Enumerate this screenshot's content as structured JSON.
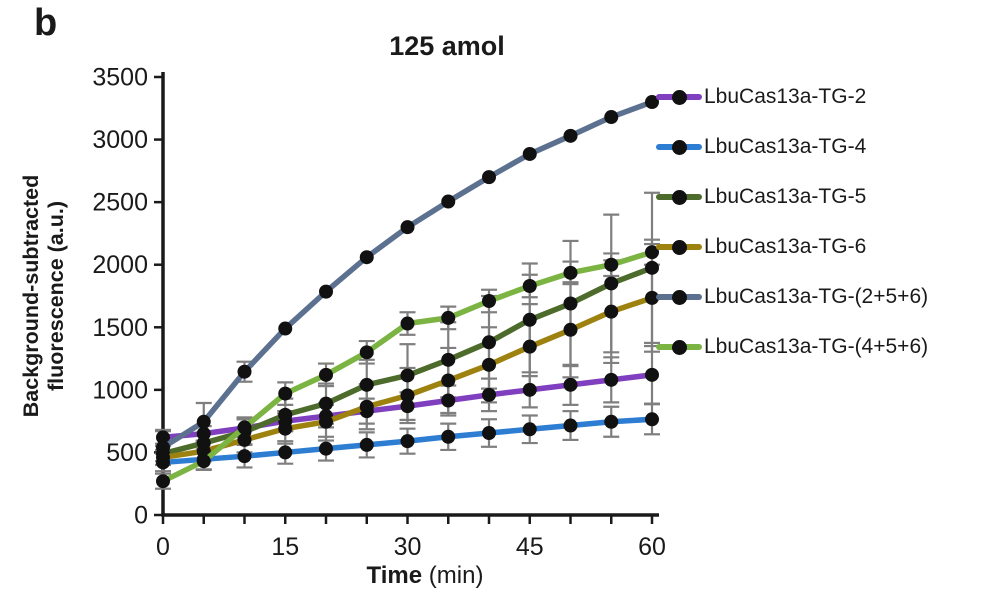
{
  "panel_label": "b",
  "chart_data": {
    "type": "line",
    "title": "125 amol",
    "xlabel_word": "Time",
    "xlabel_unit": " (min)",
    "ylabel_line1": "Background-subtracted",
    "ylabel_line2": "fluorescence (a.u.)",
    "x": [
      0,
      5,
      10,
      15,
      20,
      25,
      30,
      35,
      40,
      45,
      50,
      55,
      60
    ],
    "x_labeled_ticks": [
      0,
      15,
      30,
      45,
      60
    ],
    "x_minor_step": 5,
    "xlim": [
      0,
      60
    ],
    "ylim": [
      0,
      3500
    ],
    "y_tick_step": 500,
    "grid": false,
    "legend_position": "right",
    "marker_style": "black-circle",
    "marker_color": "#111111",
    "error_bar_color": "#7f7f7f",
    "axis_color": "#1a1a1a",
    "series": [
      {
        "name": "LbuCas13a-TG-2",
        "color": "#7f3fbf",
        "values": [
          620,
          650,
          695,
          750,
          790,
          830,
          870,
          915,
          960,
          1000,
          1040,
          1080,
          1120
        ],
        "errors": [
          50,
          60,
          70,
          80,
          90,
          100,
          110,
          120,
          130,
          140,
          160,
          180,
          230
        ]
      },
      {
        "name": "LbuCas13a-TG-4",
        "color": "#2d7dd2",
        "values": [
          420,
          445,
          470,
          500,
          530,
          560,
          590,
          625,
          655,
          685,
          715,
          745,
          765
        ],
        "errors": [
          70,
          80,
          90,
          90,
          95,
          100,
          100,
          105,
          110,
          110,
          115,
          120,
          120
        ]
      },
      {
        "name": "LbuCas13a-TG-5",
        "color": "#4d6b2b",
        "values": [
          490,
          575,
          665,
          800,
          890,
          1040,
          1115,
          1240,
          1380,
          1560,
          1690,
          1850,
          1975
        ],
        "errors": [
          60,
          80,
          100,
          130,
          160,
          200,
          250,
          300,
          370,
          450,
          500,
          550,
          600
        ]
      },
      {
        "name": "LbuCas13a-TG-6",
        "color": "#9e8210",
        "values": [
          460,
          510,
          600,
          690,
          745,
          865,
          955,
          1075,
          1200,
          1345,
          1480,
          1625,
          1735
        ],
        "errors": [
          60,
          80,
          100,
          120,
          150,
          180,
          220,
          260,
          300,
          340,
          380,
          410,
          430
        ]
      },
      {
        "name": "LbuCas13a-TG-(2+5+6)",
        "color": "#5c7090",
        "values": [
          540,
          745,
          1145,
          1490,
          1785,
          2060,
          2300,
          2505,
          2700,
          2885,
          3030,
          3180,
          3300
        ],
        "errors": [
          140,
          150,
          80,
          0,
          0,
          0,
          0,
          0,
          0,
          0,
          0,
          0,
          0
        ]
      },
      {
        "name": "LbuCas13a-TG-(4+5+6)",
        "color": "#7bb442",
        "values": [
          270,
          430,
          700,
          970,
          1120,
          1300,
          1530,
          1575,
          1710,
          1830,
          1935,
          2000,
          2100
        ],
        "errors": [
          60,
          70,
          80,
          90,
          90,
          90,
          90,
          90,
          90,
          90,
          90,
          90,
          100
        ]
      }
    ]
  }
}
